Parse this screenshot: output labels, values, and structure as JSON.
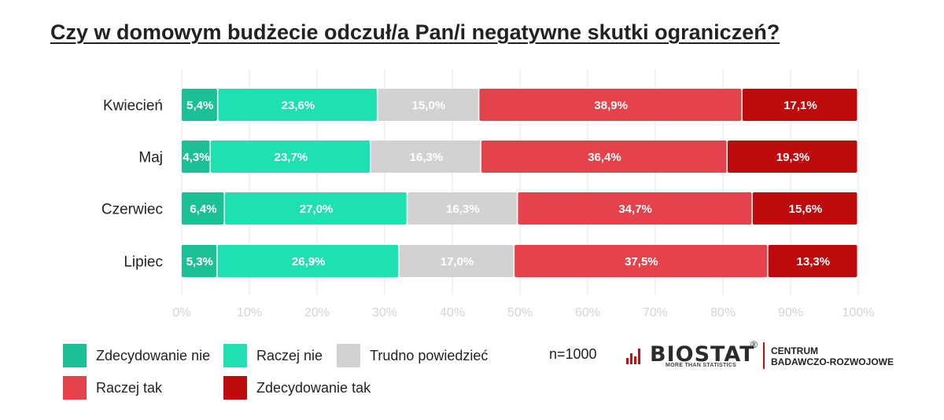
{
  "title": "Czy w domowym budżecie odczuł/a Pan/i negatywne skutki ograniczeń?",
  "sample_note": "n=1000",
  "logo": {
    "word": "BIOSTAT",
    "registered": "®",
    "tagline": "MORE THAN STATISTICS",
    "centrum_line1": "CENTRUM",
    "centrum_line2": "BADAWCZO-ROZWOJOWE"
  },
  "chart_data": {
    "type": "bar",
    "orientation": "horizontal",
    "stacked": true,
    "title": "Czy w domowym budżecie odczuł/a Pan/i negatywne skutki ograniczeń?",
    "categories": [
      "Kwiecień",
      "Maj",
      "Czerwiec",
      "Lipiec"
    ],
    "series": [
      {
        "name": "Zdecydowanie nie",
        "color": "#1cc096",
        "values": [
          5.4,
          4.3,
          6.4,
          5.3
        ],
        "labels": [
          "5,4%",
          "4,3%",
          "6,4%",
          "5,3%"
        ]
      },
      {
        "name": "Raczej nie",
        "color": "#1fe0b0",
        "values": [
          23.6,
          23.7,
          27.0,
          26.9
        ],
        "labels": [
          "23,6%",
          "23,7%",
          "27,0%",
          "26,9%"
        ]
      },
      {
        "name": "Trudno powiedzieć",
        "color": "#d2d2d2",
        "values": [
          15.0,
          16.3,
          16.3,
          17.0
        ],
        "labels": [
          "15,0%",
          "16,3%",
          "16,3%",
          "17,0%"
        ]
      },
      {
        "name": "Raczej tak",
        "color": "#e5434b",
        "values": [
          38.9,
          36.4,
          34.7,
          37.5
        ],
        "labels": [
          "38,9%",
          "36,4%",
          "34,7%",
          "37,5%"
        ]
      },
      {
        "name": "Zdecydowanie tak",
        "color": "#be0a0d",
        "values": [
          17.1,
          19.3,
          15.6,
          13.3
        ],
        "labels": [
          "17,1%",
          "19,3%",
          "15,6%",
          "13,3%"
        ]
      }
    ],
    "xlim": [
      0,
      100
    ],
    "xticks": [
      "0%",
      "10%",
      "20%",
      "30%",
      "40%",
      "50%",
      "60%",
      "70%",
      "80%",
      "90%",
      "100%"
    ],
    "grid": true,
    "legend_position": "bottom-left"
  }
}
